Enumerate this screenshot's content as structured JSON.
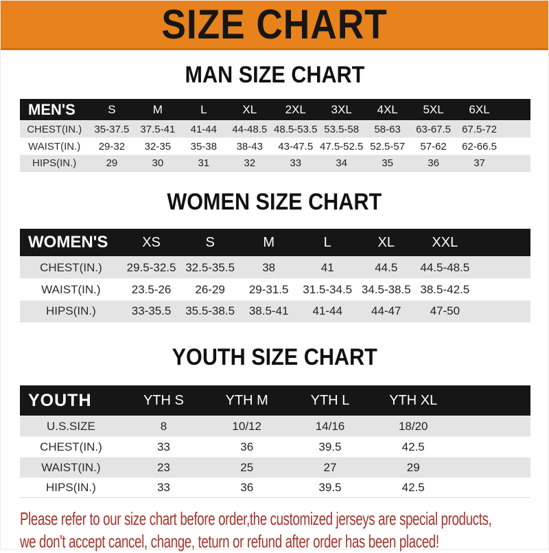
{
  "banner": {
    "title": "SIZE CHART",
    "bg_color": "#e8821c",
    "text_color": "#161616"
  },
  "sections": [
    {
      "title": "MAN SIZE CHART",
      "header_label": "MEN'S",
      "columns": [
        "S",
        "M",
        "L",
        "XL",
        "2XL",
        "3XL",
        "4XL",
        "5XL",
        "6XL"
      ],
      "rows": [
        {
          "label": "CHEST(IN.)",
          "values": [
            "35-37.5",
            "37.5-41",
            "41-44",
            "44-48.5",
            "48.5-53.5",
            "53.5-58",
            "58-63",
            "63-67.5",
            "67.5-72"
          ]
        },
        {
          "label": "WAIST(IN.)",
          "values": [
            "29-32",
            "32-35",
            "35-38",
            "38-43",
            "43-47.5",
            "47.5-52.5",
            "52.5-57",
            "57-62",
            "62-66.5"
          ]
        },
        {
          "label": "HIPS(IN.)",
          "values": [
            "29",
            "30",
            "31",
            "32",
            "33",
            "34",
            "35",
            "36",
            "37"
          ]
        }
      ]
    },
    {
      "title": "WOMEN SIZE CHART",
      "header_label": "WOMEN'S",
      "columns": [
        "XS",
        "S",
        "M",
        "L",
        "XL",
        "XXL"
      ],
      "rows": [
        {
          "label": "CHEST(IN.)",
          "values": [
            "29.5-32.5",
            "32.5-35.5",
            "38",
            "41",
            "44.5",
            "44.5-48.5"
          ]
        },
        {
          "label": "WAIST(IN.)",
          "values": [
            "23.5-26",
            "26-29",
            "29-31.5",
            "31.5-34.5",
            "34.5-38.5",
            "38.5-42.5"
          ]
        },
        {
          "label": "HIPS(IN.)",
          "values": [
            "33-35.5",
            "35.5-38.5",
            "38.5-41",
            "41-44",
            "44-47",
            "47-50"
          ]
        }
      ]
    },
    {
      "title": "YOUTH SIZE CHART",
      "header_label": "YOUTH",
      "columns": [
        "YTH S",
        "YTH M",
        "YTH L",
        "YTH XL"
      ],
      "rows": [
        {
          "label": "U.S.SIZE",
          "values": [
            "8",
            "10/12",
            "14/16",
            "18/20"
          ]
        },
        {
          "label": "CHEST(IN.)",
          "values": [
            "33",
            "36",
            "39.5",
            "42.5"
          ]
        },
        {
          "label": "WAIST(IN.)",
          "values": [
            "23",
            "25",
            "27",
            "29"
          ]
        },
        {
          "label": "HIPS(IN.)",
          "values": [
            "33",
            "36",
            "39.5",
            "42.5"
          ]
        }
      ]
    }
  ],
  "footer": {
    "lines": [
      "Please refer to our size chart before order,the customized jerseys are special products,",
      "we don't accept cancel, change, teturn or refund after order has been placed!"
    ],
    "text_color": "#a2342c"
  },
  "colors": {
    "banner_bg": "#e8821c",
    "table_header_bg": "#161616",
    "row_alt_bg": "#e4e4e4",
    "notice_text": "#a2342c"
  }
}
